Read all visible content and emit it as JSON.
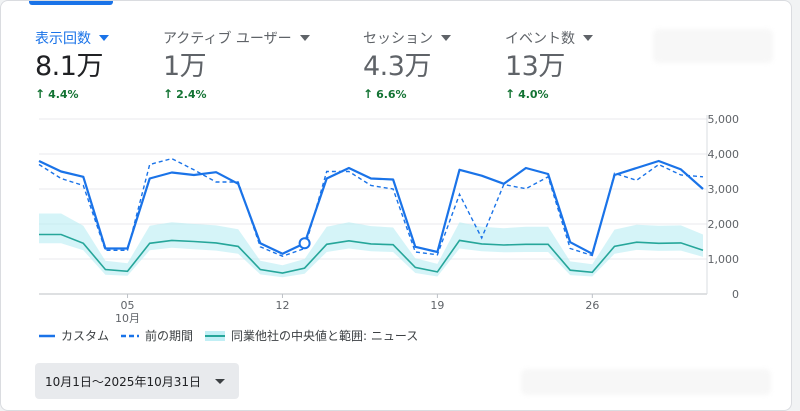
{
  "metrics": [
    {
      "label": "表示回数",
      "value": "8.1万",
      "change": "4.4%",
      "active": true
    },
    {
      "label": "アクティブ ユーザー",
      "value": "1万",
      "change": "2.4%",
      "active": false
    },
    {
      "label": "セッション",
      "value": "4.3万",
      "change": "6.6%",
      "active": false
    },
    {
      "label": "イベント数",
      "value": "13万",
      "change": "4.0%",
      "active": false
    }
  ],
  "legend": {
    "custom": "カスタム",
    "previous": "前の期間",
    "benchmark": "同業他社の中央値と範囲: ニュース"
  },
  "date_range": {
    "label": "10月1日〜2025年10月31日"
  },
  "colors": {
    "accent": "#1a73e8",
    "positive": "#137333",
    "benchmark": "#26a69a",
    "band": "#b2ebf2"
  },
  "chart_data": {
    "type": "line",
    "x": [
      "2025-10-01",
      "2025-10-02",
      "2025-10-03",
      "2025-10-04",
      "2025-10-05",
      "2025-10-06",
      "2025-10-07",
      "2025-10-08",
      "2025-10-09",
      "2025-10-10",
      "2025-10-11",
      "2025-10-12",
      "2025-10-13",
      "2025-10-14",
      "2025-10-15",
      "2025-10-16",
      "2025-10-17",
      "2025-10-18",
      "2025-10-19",
      "2025-10-20",
      "2025-10-21",
      "2025-10-22",
      "2025-10-23",
      "2025-10-24",
      "2025-10-25",
      "2025-10-26",
      "2025-10-27",
      "2025-10-28",
      "2025-10-29",
      "2025-10-30",
      "2025-10-31"
    ],
    "x_ticks": [
      "05",
      "12",
      "19",
      "26"
    ],
    "x_month_label": "10月",
    "y_ticks": [
      "5,000",
      "4,000",
      "3,000",
      "2,000",
      "1,000",
      "0"
    ],
    "ylim": [
      0,
      5000
    ],
    "highlight_index": 12,
    "series": [
      {
        "name": "カスタム",
        "style": "solid",
        "values": [
          3800,
          3500,
          3350,
          1300,
          1300,
          3300,
          3470,
          3400,
          3480,
          3150,
          1450,
          1150,
          1450,
          3300,
          3600,
          3300,
          3270,
          1350,
          1200,
          3550,
          3380,
          3150,
          3600,
          3430,
          1480,
          1150,
          3400,
          3600,
          3800,
          3560,
          3000
        ]
      },
      {
        "name": "前の期間",
        "style": "dashed",
        "values": [
          3700,
          3300,
          3100,
          1250,
          1250,
          3700,
          3870,
          3550,
          3200,
          3200,
          1350,
          1080,
          1300,
          3500,
          3500,
          3100,
          3000,
          1200,
          1120,
          2850,
          1600,
          3130,
          3010,
          3350,
          1300,
          1100,
          3450,
          3250,
          3700,
          3400,
          3350
        ]
      },
      {
        "name": "同業他社の中央値と範囲: ニュース",
        "style": "benchmark",
        "values": [
          1700,
          1700,
          1450,
          700,
          650,
          1450,
          1530,
          1500,
          1460,
          1360,
          700,
          600,
          740,
          1420,
          1520,
          1430,
          1410,
          760,
          630,
          1530,
          1430,
          1400,
          1420,
          1420,
          680,
          620,
          1360,
          1480,
          1450,
          1460,
          1250
        ],
        "low": [
          1450,
          1450,
          1250,
          550,
          520,
          1250,
          1320,
          1280,
          1240,
          1150,
          560,
          480,
          580,
          1200,
          1300,
          1220,
          1200,
          600,
          500,
          1300,
          1220,
          1190,
          1200,
          1200,
          540,
          500,
          1150,
          1260,
          1230,
          1240,
          1060
        ],
        "high": [
          2300,
          2300,
          1950,
          950,
          880,
          1950,
          2050,
          2000,
          1960,
          1850,
          950,
          820,
          1000,
          1920,
          2050,
          1940,
          1900,
          1020,
          860,
          2050,
          1920,
          1880,
          1920,
          1920,
          930,
          850,
          1840,
          1980,
          1950,
          1960,
          1700
        ]
      }
    ]
  }
}
